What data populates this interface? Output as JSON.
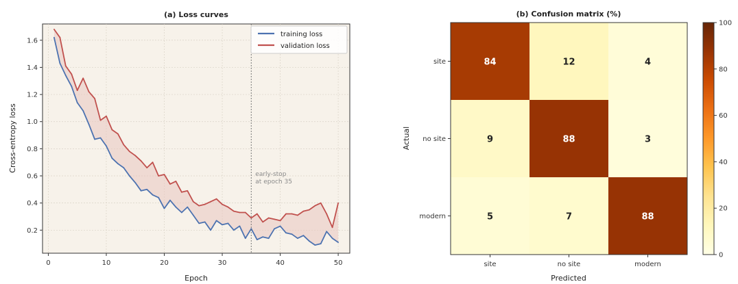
{
  "chart_data": [
    {
      "type": "line",
      "title": "(a) Loss curves",
      "xlabel": "Epoch",
      "ylabel": "Cross-entropy loss",
      "xlim": [
        -1,
        52
      ],
      "ylim": [
        0.03,
        1.72
      ],
      "xticks": [
        0,
        10,
        20,
        30,
        40,
        50
      ],
      "yticks": [
        0.2,
        0.4,
        0.6,
        0.8,
        1.0,
        1.2,
        1.4,
        1.6
      ],
      "grid": true,
      "legend": "top-right",
      "x": [
        1,
        2,
        3,
        4,
        5,
        6,
        7,
        8,
        9,
        10,
        11,
        12,
        13,
        14,
        15,
        16,
        17,
        18,
        19,
        20,
        21,
        22,
        23,
        24,
        25,
        26,
        27,
        28,
        29,
        30,
        31,
        32,
        33,
        34,
        35,
        36,
        37,
        38,
        39,
        40,
        41,
        42,
        43,
        44,
        45,
        46,
        47,
        48,
        49,
        50
      ],
      "series": [
        {
          "name": "training loss",
          "color": "#4c72b0",
          "values": [
            1.62,
            1.43,
            1.34,
            1.26,
            1.14,
            1.08,
            0.98,
            0.87,
            0.88,
            0.82,
            0.73,
            0.69,
            0.66,
            0.6,
            0.55,
            0.49,
            0.5,
            0.46,
            0.44,
            0.36,
            0.42,
            0.37,
            0.33,
            0.37,
            0.31,
            0.25,
            0.26,
            0.2,
            0.27,
            0.24,
            0.25,
            0.2,
            0.23,
            0.14,
            0.21,
            0.13,
            0.15,
            0.14,
            0.21,
            0.23,
            0.18,
            0.17,
            0.14,
            0.16,
            0.12,
            0.09,
            0.1,
            0.19,
            0.14,
            0.11
          ]
        },
        {
          "name": "validation loss",
          "color": "#c0504d",
          "values": [
            1.68,
            1.62,
            1.41,
            1.35,
            1.23,
            1.32,
            1.22,
            1.17,
            1.01,
            1.04,
            0.94,
            0.91,
            0.83,
            0.78,
            0.75,
            0.71,
            0.66,
            0.7,
            0.6,
            0.61,
            0.54,
            0.56,
            0.48,
            0.49,
            0.41,
            0.38,
            0.39,
            0.41,
            0.43,
            0.39,
            0.37,
            0.34,
            0.33,
            0.33,
            0.29,
            0.32,
            0.26,
            0.29,
            0.28,
            0.27,
            0.32,
            0.32,
            0.31,
            0.34,
            0.35,
            0.38,
            0.4,
            0.32,
            0.22,
            0.4
          ]
        }
      ],
      "annotations": [
        {
          "x": 35,
          "label_line1": "early-stop",
          "label_line2": "at epoch 35",
          "style": "dotted vertical line"
        }
      ]
    },
    {
      "type": "heatmap",
      "title": "(b) Confusion matrix (%)",
      "xlabel": "Predicted",
      "ylabel": "Actual",
      "x_categories": [
        "site",
        "no site",
        "modern"
      ],
      "y_categories": [
        "site",
        "no site",
        "modern"
      ],
      "values": [
        [
          84,
          12,
          4
        ],
        [
          9,
          88,
          3
        ],
        [
          5,
          7,
          88
        ]
      ],
      "colormap": "YlOrBr",
      "color_range": [
        0,
        100
      ],
      "colorbar_ticks": [
        0,
        20,
        40,
        60,
        80,
        100
      ]
    }
  ]
}
